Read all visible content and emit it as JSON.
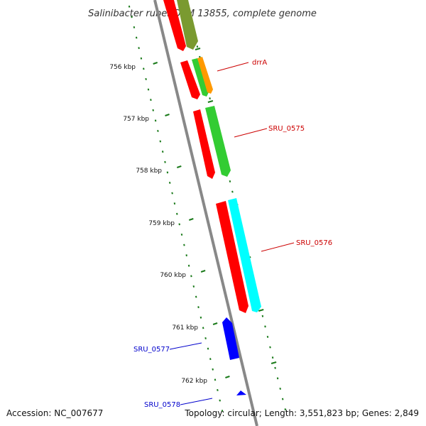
{
  "title": "Salinibacter ruber DSM 13855, complete genome",
  "accession": "Accession: NC_007677",
  "summary": "Topology: circular; Length: 3,551,823 bp; Genes: 2,849",
  "colors": {
    "backbone": "#888888",
    "ticks": "#1a7a1a",
    "label_forward": "#cc0000",
    "label_reverse": "#0000cc",
    "gene_red": "#ff0000",
    "gene_olive": "#7a9a30",
    "gene_green": "#33cc33",
    "gene_orange": "#ff9900",
    "gene_cyan": "#00ffff",
    "gene_blue": "#0000ff"
  },
  "scale": {
    "unit": "kbp",
    "labels": [
      "756 kbp",
      "757 kbp",
      "758 kbp",
      "759 kbp",
      "760 kbp",
      "761 kbp",
      "762 kbp"
    ]
  },
  "genes": [
    {
      "label": "drrA",
      "strand": "forward"
    },
    {
      "label": "SRU_0575",
      "strand": "forward"
    },
    {
      "label": "SRU_0576",
      "strand": "forward"
    },
    {
      "label": "SRU_0577",
      "strand": "reverse"
    },
    {
      "label": "SRU_0578",
      "strand": "reverse"
    }
  ]
}
